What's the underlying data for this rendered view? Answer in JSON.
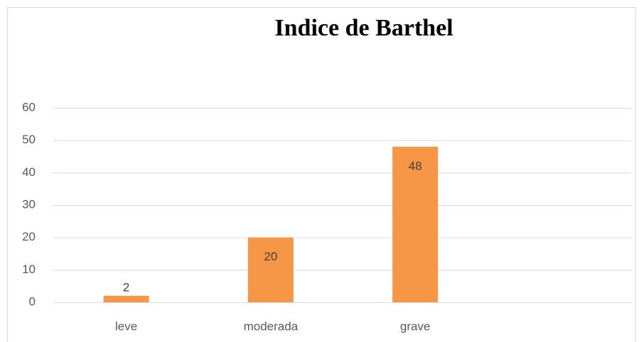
{
  "chart_data": {
    "type": "bar",
    "title": "Indice de Barthel",
    "categories": [
      "leve",
      "moderada",
      "grave",
      null
    ],
    "values": [
      2,
      20,
      48,
      null
    ],
    "color": "#f79646",
    "ylim": [
      0,
      60
    ],
    "yticks": [
      0,
      10,
      20,
      30,
      40,
      50,
      60
    ],
    "grid": true,
    "data_labels": true
  }
}
